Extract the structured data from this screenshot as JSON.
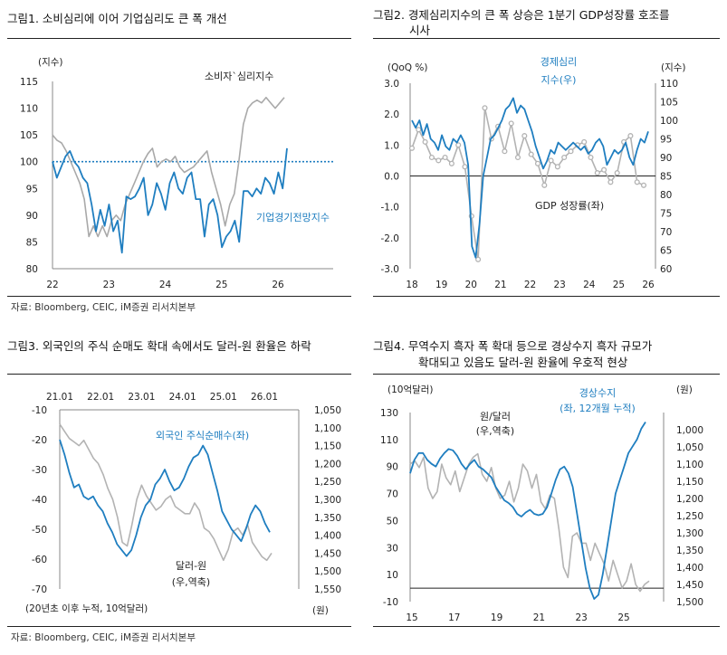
{
  "fig1": {
    "title": "그림1.  소비심리에 이어 기업심리도 큰 폭 개선",
    "source": "자료: Bloomberg, CEIC, iM증권 리서치본부",
    "chart_data": {
      "type": "line",
      "unit_label": "(지수)",
      "ylim": [
        80,
        115
      ],
      "yticks": [
        "115",
        "110",
        "105",
        "100",
        "95",
        "90",
        "85",
        "80"
      ],
      "xticks": [
        "22",
        "23",
        "24",
        "25",
        "26"
      ],
      "reference_line": 100,
      "series": [
        {
          "name": "소비자`심리지수",
          "color": "#a9a9a9",
          "values": [
            105,
            104,
            103.5,
            102,
            100,
            98,
            96,
            93,
            86,
            88,
            86,
            88,
            86,
            89,
            90,
            89,
            92,
            94,
            96,
            98,
            100,
            101.5,
            102.5,
            99,
            100,
            100.5,
            100,
            101,
            99,
            98,
            98.5,
            99,
            100,
            101,
            102,
            98,
            95,
            92,
            88,
            92,
            94,
            100,
            107,
            110,
            111,
            111.5,
            111,
            112,
            111,
            110,
            111,
            112
          ]
        },
        {
          "name": "기업경기전망지수",
          "color": "#1f7ec0",
          "values": [
            100,
            97,
            99,
            101,
            102,
            100,
            99,
            97,
            96,
            92,
            87,
            91,
            88,
            92,
            87,
            89,
            83,
            93.5,
            93,
            93.5,
            95,
            97,
            90,
            92,
            96,
            94,
            91,
            96,
            98,
            95,
            94,
            97,
            98,
            93,
            93,
            86,
            92,
            93,
            90,
            84,
            86,
            87,
            89,
            85,
            94.5,
            94.5,
            93.5,
            95,
            94,
            97,
            96,
            94,
            98,
            95,
            102.5
          ]
        }
      ]
    }
  },
  "fig2": {
    "title_line1": "그림2.  경제심리지수의 큰 폭 상승은 1분기 GDP성장률 호조를",
    "title_line2": "시사",
    "chart_data": {
      "type": "line",
      "left_unit": "(QoQ %)",
      "right_unit": "(지수)",
      "left_ylim": [
        -3.0,
        3.0
      ],
      "right_ylim": [
        60,
        110
      ],
      "left_ticks": [
        "3.0",
        "2.0",
        "1.0",
        "0.0",
        "-1.0",
        "-2.0",
        "-3.0"
      ],
      "right_ticks": [
        "110",
        "105",
        "100",
        "95",
        "90",
        "85",
        "80",
        "75",
        "70",
        "65",
        "60"
      ],
      "xticks": [
        "18",
        "19",
        "20",
        "21",
        "22",
        "23",
        "24",
        "25",
        "26"
      ],
      "series": [
        {
          "name": "경제심리지수(우)",
          "label_line1": "경제심리",
          "label_line2": "지수(우)",
          "axis": "right",
          "color": "#1f7ec0",
          "values": [
            100,
            98,
            100,
            96,
            99,
            95,
            94,
            92,
            96,
            93,
            92,
            95,
            94,
            96,
            94,
            88,
            66,
            63,
            72,
            85,
            90,
            95,
            96,
            98,
            100,
            103,
            104,
            106,
            102,
            104,
            103,
            100,
            97,
            93,
            90,
            87,
            89,
            92,
            91,
            94,
            93,
            92,
            93,
            94,
            93,
            92,
            93,
            91,
            92,
            94,
            95,
            93,
            88,
            90,
            92,
            91,
            92,
            94,
            90,
            88,
            92,
            95,
            94,
            97
          ]
        },
        {
          "name": "GDP 성장률(좌)",
          "axis": "left",
          "color": "#b3b3b3",
          "values": [
            0.9,
            1.5,
            1.1,
            0.6,
            0.5,
            0.6,
            0.4,
            1.0,
            0.3,
            -1.3,
            -2.7,
            2.2,
            1.2,
            1.6,
            0.8,
            1.7,
            0.6,
            1.3,
            0.7,
            0.4,
            -0.3,
            0.5,
            0.3,
            0.6,
            0.8,
            1.0,
            1.1,
            0.6,
            0.1,
            0.2,
            -0.2,
            0.1,
            1.1,
            1.3,
            -0.2,
            -0.3
          ]
        }
      ]
    }
  },
  "fig3": {
    "title": "그림3.  외국인의 주식 순매도 확대 속에서도 달러-원 환율은 하락",
    "source": "자료: Bloomberg, CEIC, iM증권 리서치본부",
    "chart_data": {
      "type": "line",
      "left_ylim": [
        -70,
        -10
      ],
      "right_ylim_inverted": [
        1050,
        1550
      ],
      "left_ticks": [
        "-10",
        "-20",
        "-30",
        "-40",
        "-50",
        "-60",
        "-70"
      ],
      "right_ticks": [
        "1,050",
        "1,100",
        "1,150",
        "1,200",
        "1,250",
        "1,300",
        "1,350",
        "1,400",
        "1,450",
        "1,500",
        "1,550"
      ],
      "xticks": [
        "21.01",
        "22.01",
        "23.01",
        "24.01",
        "25.01",
        "26.01"
      ],
      "left_note": "(20년초 이후 누적, 10억달러)",
      "right_unit": "(원)",
      "series": [
        {
          "name": "외국인 주식순매수(좌)",
          "axis": "left",
          "color": "#1f7ec0",
          "values": [
            -20,
            -25,
            -31,
            -36,
            -35,
            -39,
            -40,
            -39,
            -42,
            -44,
            -48,
            -51,
            -55,
            -57,
            -59,
            -57,
            -52,
            -46,
            -42,
            -40,
            -35,
            -33,
            -30,
            -34,
            -37,
            -36,
            -33,
            -29,
            -26,
            -25,
            -22,
            -25,
            -31,
            -37,
            -44,
            -47,
            -50,
            -52,
            -54,
            -50,
            -45,
            -42,
            -44,
            -48,
            -51
          ]
        },
        {
          "name": "달러-원(우,역축)",
          "label_line1": "달러-원",
          "label_line2": "(우,역축)",
          "axis": "right",
          "color": "#b3b3b3",
          "values": [
            1090,
            1110,
            1130,
            1140,
            1150,
            1135,
            1160,
            1185,
            1200,
            1230,
            1270,
            1300,
            1350,
            1420,
            1430,
            1370,
            1300,
            1260,
            1290,
            1310,
            1330,
            1320,
            1300,
            1290,
            1320,
            1330,
            1340,
            1340,
            1310,
            1330,
            1380,
            1390,
            1410,
            1440,
            1470,
            1440,
            1390,
            1380,
            1400,
            1370,
            1420,
            1440,
            1460,
            1470,
            1450
          ]
        }
      ]
    }
  },
  "fig4": {
    "title_line1": "그림4.  무역수지 흑자 폭 확대 등으로 경상수지 흑자 규모가",
    "title_line2": "확대되고 있음도 달러-원 환율에 우호적 현상",
    "chart_data": {
      "type": "line",
      "left_unit": "(10억달러)",
      "right_unit": "(원)",
      "left_ylim": [
        -10,
        130
      ],
      "right_ylim_inverted": [
        950,
        1500
      ],
      "left_ticks": [
        "130",
        "110",
        "90",
        "70",
        "50",
        "30",
        "10",
        "-10"
      ],
      "right_ticks": [
        "1,000",
        "1,050",
        "1,100",
        "1,150",
        "1,200",
        "1,250",
        "1,300",
        "1,350",
        "1,400",
        "1,450",
        "1,500"
      ],
      "xticks": [
        "15",
        "17",
        "19",
        "21",
        "23",
        "25"
      ],
      "series": [
        {
          "name": "경상수지(좌, 12개월 누적)",
          "label_line1": "경상수지",
          "label_line2": "(좌, 12개월 누적)",
          "axis": "left",
          "color": "#1f7ec0",
          "values": [
            85,
            95,
            100,
            100,
            95,
            92,
            90,
            96,
            100,
            103,
            102,
            98,
            92,
            88,
            92,
            95,
            90,
            88,
            85,
            82,
            75,
            70,
            65,
            63,
            60,
            55,
            53,
            56,
            58,
            55,
            54,
            55,
            60,
            70,
            80,
            88,
            90,
            85,
            75,
            55,
            35,
            15,
            0,
            -8,
            -5,
            10,
            30,
            50,
            70,
            80,
            90,
            100,
            105,
            110,
            118,
            123
          ]
        },
        {
          "name": "원/달러(우,역축)",
          "label_line1": "원/달러",
          "label_line2": "(우,역축)",
          "axis": "right",
          "color": "#b3b3b3",
          "values": [
            1100,
            1090,
            1110,
            1080,
            1170,
            1200,
            1180,
            1100,
            1140,
            1160,
            1120,
            1180,
            1140,
            1100,
            1080,
            1070,
            1130,
            1150,
            1110,
            1170,
            1200,
            1190,
            1150,
            1210,
            1170,
            1100,
            1120,
            1170,
            1130,
            1210,
            1230,
            1190,
            1200,
            1290,
            1400,
            1430,
            1310,
            1300,
            1330,
            1330,
            1380,
            1330,
            1360,
            1390,
            1440,
            1380,
            1420,
            1460,
            1440,
            1390,
            1450,
            1470,
            1450,
            1440
          ]
        }
      ]
    }
  }
}
